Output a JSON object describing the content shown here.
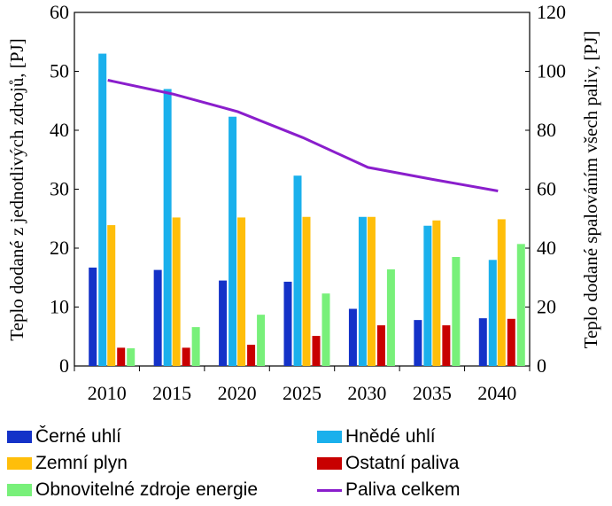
{
  "chart_data": {
    "type": "bar",
    "categories": [
      "2010",
      "2015",
      "2020",
      "2025",
      "2030",
      "2035",
      "2040"
    ],
    "series": [
      {
        "name": "Černé uhlí",
        "axis": "left",
        "color": "#1432c8",
        "values": [
          16.7,
          16.3,
          14.5,
          14.3,
          9.7,
          7.8,
          8.1
        ]
      },
      {
        "name": "Hnědé uhlí",
        "axis": "left",
        "color": "#1ab0ec",
        "values": [
          53.0,
          47.0,
          42.3,
          32.3,
          25.3,
          23.8,
          18.0
        ]
      },
      {
        "name": "Zemní plyn",
        "axis": "left",
        "color": "#ffbe0a",
        "values": [
          23.9,
          25.2,
          25.2,
          25.3,
          25.3,
          24.7,
          24.9
        ]
      },
      {
        "name": "Ostatní paliva",
        "axis": "left",
        "color": "#c80000",
        "values": [
          3.1,
          3.1,
          3.6,
          5.1,
          6.9,
          6.9,
          8.0
        ]
      },
      {
        "name": "Obnovitelné zdroje energie",
        "axis": "left",
        "color": "#78f07a",
        "values": [
          3.0,
          6.6,
          8.7,
          12.3,
          16.4,
          18.5,
          20.7
        ]
      }
    ],
    "line_series": [
      {
        "name": "Paliva celkem",
        "axis": "right",
        "color": "#8a1ecc",
        "values": [
          97.0,
          92.3,
          86.3,
          77.5,
          67.4,
          63.3,
          59.4
        ]
      }
    ],
    "ylim_left": [
      0,
      60
    ],
    "yticks_left": [
      "0",
      "10",
      "20",
      "30",
      "40",
      "50",
      "60"
    ],
    "ylim_right": [
      0,
      120
    ],
    "yticks_right": [
      "0",
      "20",
      "40",
      "60",
      "80",
      "100",
      "120"
    ],
    "ylabel_left": "Teplo dodané z jednotlivých zdrojů, [PJ]",
    "ylabel_right": "Teplo dodané spalováním všech paliv, [PJ]",
    "xlabel": "",
    "title": "",
    "grid": false,
    "legend_position": "bottom"
  },
  "legend": {
    "items": [
      {
        "label": "Černé uhlí",
        "color": "#1432c8",
        "kind": "bar"
      },
      {
        "label": "Hnědé uhlí",
        "color": "#1ab0ec",
        "kind": "bar"
      },
      {
        "label": "Zemní plyn",
        "color": "#ffbe0a",
        "kind": "bar"
      },
      {
        "label": "Ostatní paliva",
        "color": "#c80000",
        "kind": "bar"
      },
      {
        "label": "Obnovitelné zdroje energie",
        "color": "#78f07a",
        "kind": "bar"
      },
      {
        "label": "Paliva celkem",
        "color": "#8a1ecc",
        "kind": "line"
      }
    ]
  }
}
